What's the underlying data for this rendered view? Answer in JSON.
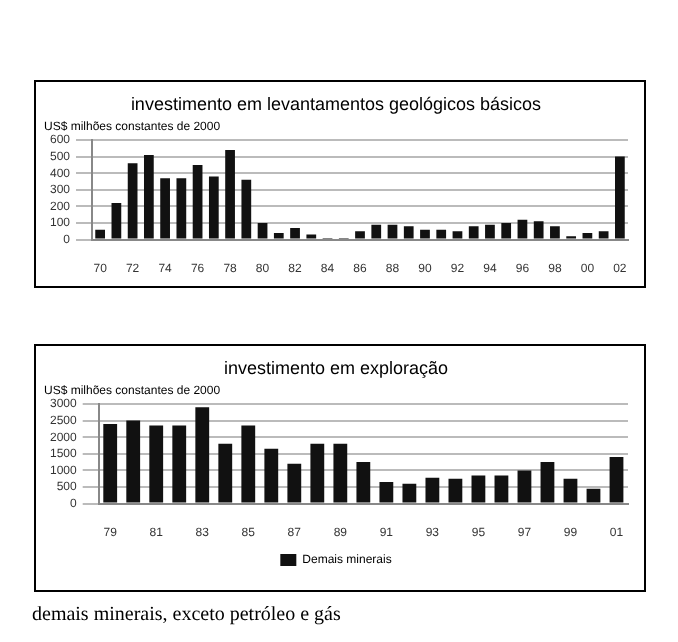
{
  "chart_data": [
    {
      "type": "bar",
      "title": "investimento em levantamentos geológicos básicos",
      "subtitle": "US$ milhões constantes de 2000",
      "categories": [
        "70",
        null,
        "72",
        null,
        "74",
        null,
        "76",
        null,
        "78",
        null,
        "80",
        null,
        "82",
        null,
        "84",
        null,
        "86",
        null,
        "88",
        null,
        "90",
        null,
        "92",
        null,
        "94",
        null,
        "96",
        null,
        "98",
        null,
        "00",
        null,
        "02"
      ],
      "series": [
        {
          "color": "#111111",
          "values": [
            60,
            220,
            460,
            510,
            370,
            370,
            450,
            380,
            540,
            360,
            100,
            40,
            70,
            30,
            10,
            10,
            50,
            90,
            90,
            80,
            60,
            60,
            50,
            80,
            90,
            100,
            120,
            110,
            80,
            20,
            40,
            50,
            500
          ]
        }
      ],
      "ylim": [
        0,
        600
      ],
      "yticks": [
        0,
        100,
        200,
        300,
        400,
        500,
        600
      ],
      "grid": "y",
      "legend": false
    },
    {
      "type": "bar",
      "title": "investimento em exploração",
      "subtitle": "US$ milhões constantes de 2000",
      "categories": [
        "79",
        null,
        "81",
        null,
        "83",
        null,
        "85",
        null,
        "87",
        null,
        "89",
        null,
        "91",
        null,
        "93",
        null,
        "95",
        null,
        "97",
        null,
        "99",
        null,
        "01"
      ],
      "series": [
        {
          "name": "Demais minerais",
          "color": "#111111",
          "values": [
            2400,
            2500,
            2350,
            2350,
            2900,
            1800,
            2350,
            1650,
            1200,
            1800,
            1800,
            1250,
            650,
            600,
            780,
            750,
            850,
            850,
            1000,
            1250,
            750,
            450,
            1400
          ]
        }
      ],
      "ylim": [
        0,
        3000
      ],
      "yticks": [
        0,
        500,
        1000,
        1500,
        2000,
        2500,
        3000
      ],
      "grid": "y",
      "legend": "bottom",
      "annotations": [
        "demais minerais, exceto petróleo e gás"
      ]
    }
  ]
}
